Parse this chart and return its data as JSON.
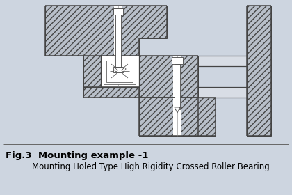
{
  "bg_color": "#cdd5e0",
  "hatch_fill": "#b8bfc9",
  "line_color": "#444444",
  "white_color": "#ffffff",
  "grey_light": "#d8dde5",
  "title1": "Fig.3  Mounting example -1",
  "title2": "Mounting Holed Type High Rigidity Crossed Roller Bearing",
  "title1_fontsize": 9.5,
  "title2_fontsize": 8.5,
  "fig_width": 4.2,
  "fig_height": 2.8,
  "dpi": 100
}
